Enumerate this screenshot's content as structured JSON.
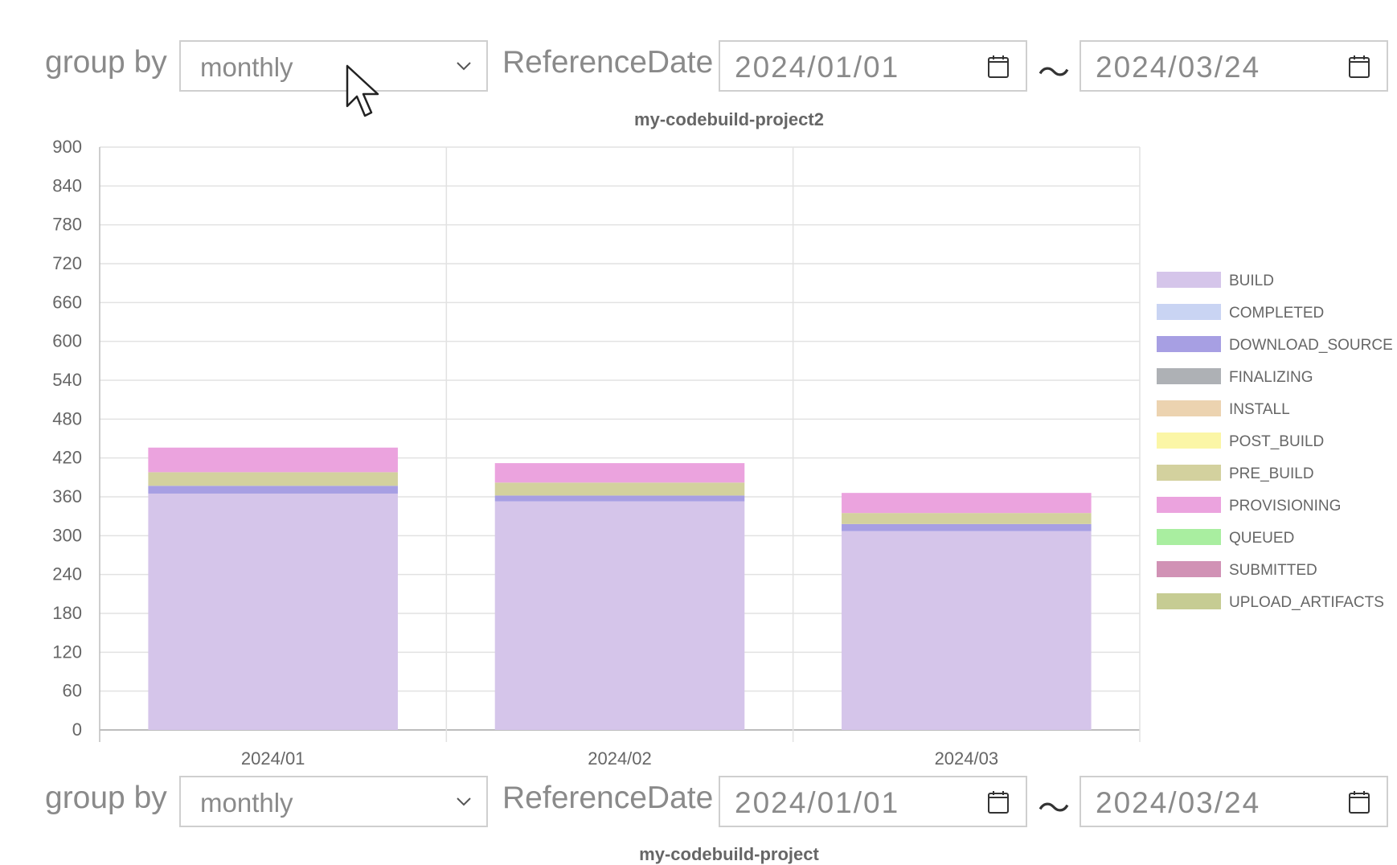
{
  "panels": [
    {
      "group_by_label": "group by",
      "group_by_value": "monthly",
      "reference_date_label": "ReferenceDate",
      "date_from": "2024/01/01",
      "date_separator": "〜",
      "date_to": "2024/03/24",
      "chart_title": "my-codebuild-project2"
    },
    {
      "group_by_label": "group by",
      "group_by_value": "monthly",
      "reference_date_label": "ReferenceDate",
      "date_from": "2024/01/01",
      "date_separator": "〜",
      "date_to": "2024/03/24",
      "chart_title": "my-codebuild-project"
    }
  ],
  "chart_data": {
    "type": "bar",
    "stacked": true,
    "title": "my-codebuild-project2",
    "categories": [
      "2024/01",
      "2024/02",
      "2024/03"
    ],
    "ylim": [
      0,
      900
    ],
    "yticks": [
      0,
      60,
      120,
      180,
      240,
      300,
      360,
      420,
      480,
      540,
      600,
      660,
      720,
      780,
      840,
      900
    ],
    "grid": true,
    "legend_position": "right",
    "series": [
      {
        "name": "BUILD",
        "color": "#d5c5ea",
        "values": [
          365,
          353,
          307
        ]
      },
      {
        "name": "COMPLETED",
        "color": "#c9d4f3",
        "values": [
          0,
          0,
          0
        ]
      },
      {
        "name": "DOWNLOAD_SOURCE",
        "color": "#a79fe3",
        "values": [
          12,
          9,
          11
        ]
      },
      {
        "name": "FINALIZING",
        "color": "#aeb1b5",
        "values": [
          0,
          0,
          0
        ]
      },
      {
        "name": "INSTALL",
        "color": "#ecd3b0",
        "values": [
          0,
          0,
          0
        ]
      },
      {
        "name": "POST_BUILD",
        "color": "#fbf6a6",
        "values": [
          0,
          0,
          0
        ]
      },
      {
        "name": "PRE_BUILD",
        "color": "#d3d19e",
        "values": [
          21,
          20,
          17
        ]
      },
      {
        "name": "PROVISIONING",
        "color": "#eba3de",
        "values": [
          38,
          30,
          31
        ]
      },
      {
        "name": "QUEUED",
        "color": "#a9eea0",
        "values": [
          0,
          0,
          0
        ]
      },
      {
        "name": "SUBMITTED",
        "color": "#d192b5",
        "values": [
          0,
          0,
          0
        ]
      },
      {
        "name": "UPLOAD_ARTIFACTS",
        "color": "#c6cc93",
        "values": [
          0,
          0,
          0
        ]
      }
    ]
  }
}
